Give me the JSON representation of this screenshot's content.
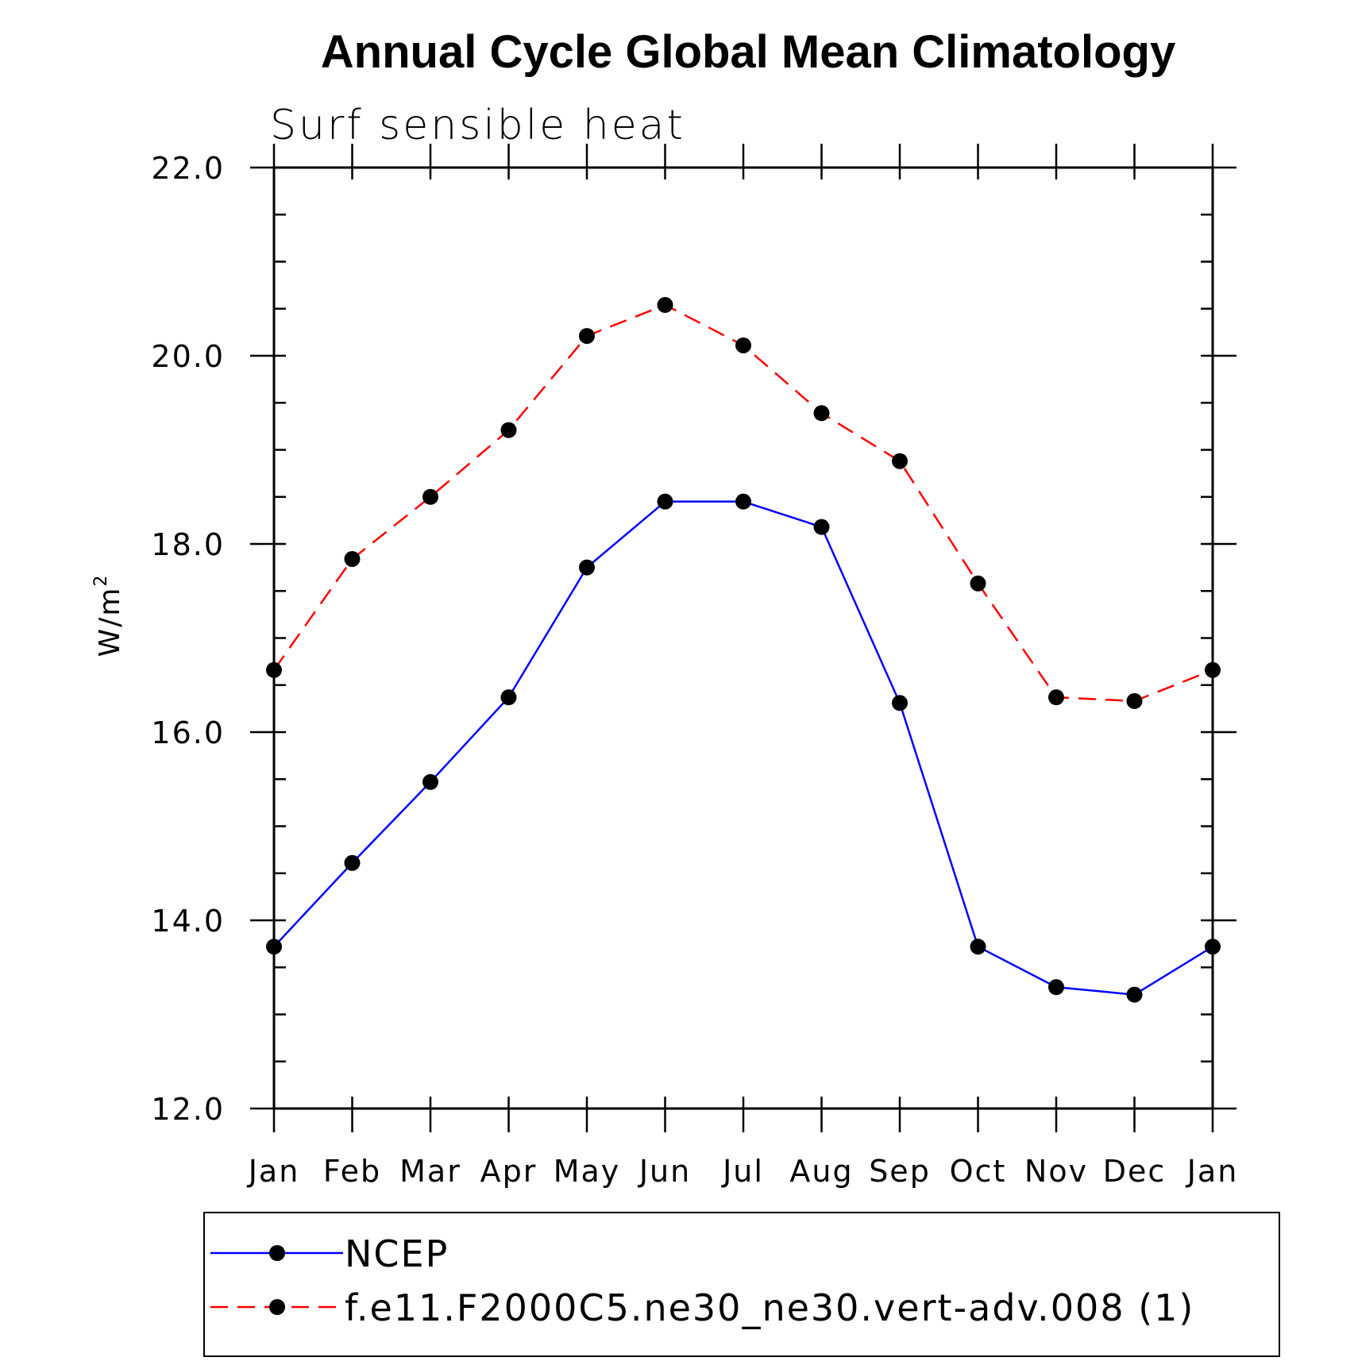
{
  "chart_data": {
    "type": "line",
    "title": "Annual Cycle Global Mean Climatology",
    "subtitle": "Surf sensible heat",
    "ylabel": "W/m",
    "ylabel_sup": "2",
    "xlabel": "",
    "categories": [
      "Jan",
      "Feb",
      "Mar",
      "Apr",
      "May",
      "Jun",
      "Jul",
      "Aug",
      "Sep",
      "Oct",
      "Nov",
      "Dec",
      "Jan"
    ],
    "ylim": [
      12.0,
      22.0
    ],
    "yticks": [
      "12.0",
      "14.0",
      "16.0",
      "18.0",
      "20.0",
      "22.0"
    ],
    "yticks_major": [
      12,
      14,
      16,
      18,
      20,
      22
    ],
    "yticks_minor_step": 0.5,
    "grid": false,
    "legend_position": "bottom",
    "series": [
      {
        "name": "NCEP",
        "color": "#0000ff",
        "dash": "solid",
        "marker": "filled-circle",
        "values": [
          13.72,
          14.61,
          15.47,
          16.37,
          17.75,
          18.45,
          18.45,
          18.18,
          16.31,
          13.72,
          13.29,
          13.21,
          13.72
        ]
      },
      {
        "name": "f.e11.F2000C5.ne30_ne30.vert-adv.008 (1)",
        "color": "#ff0000",
        "dash": "dashed",
        "marker": "filled-circle",
        "values": [
          16.66,
          17.84,
          18.5,
          19.21,
          20.21,
          20.54,
          20.11,
          19.39,
          18.88,
          17.58,
          16.37,
          16.33,
          16.66
        ]
      }
    ]
  }
}
